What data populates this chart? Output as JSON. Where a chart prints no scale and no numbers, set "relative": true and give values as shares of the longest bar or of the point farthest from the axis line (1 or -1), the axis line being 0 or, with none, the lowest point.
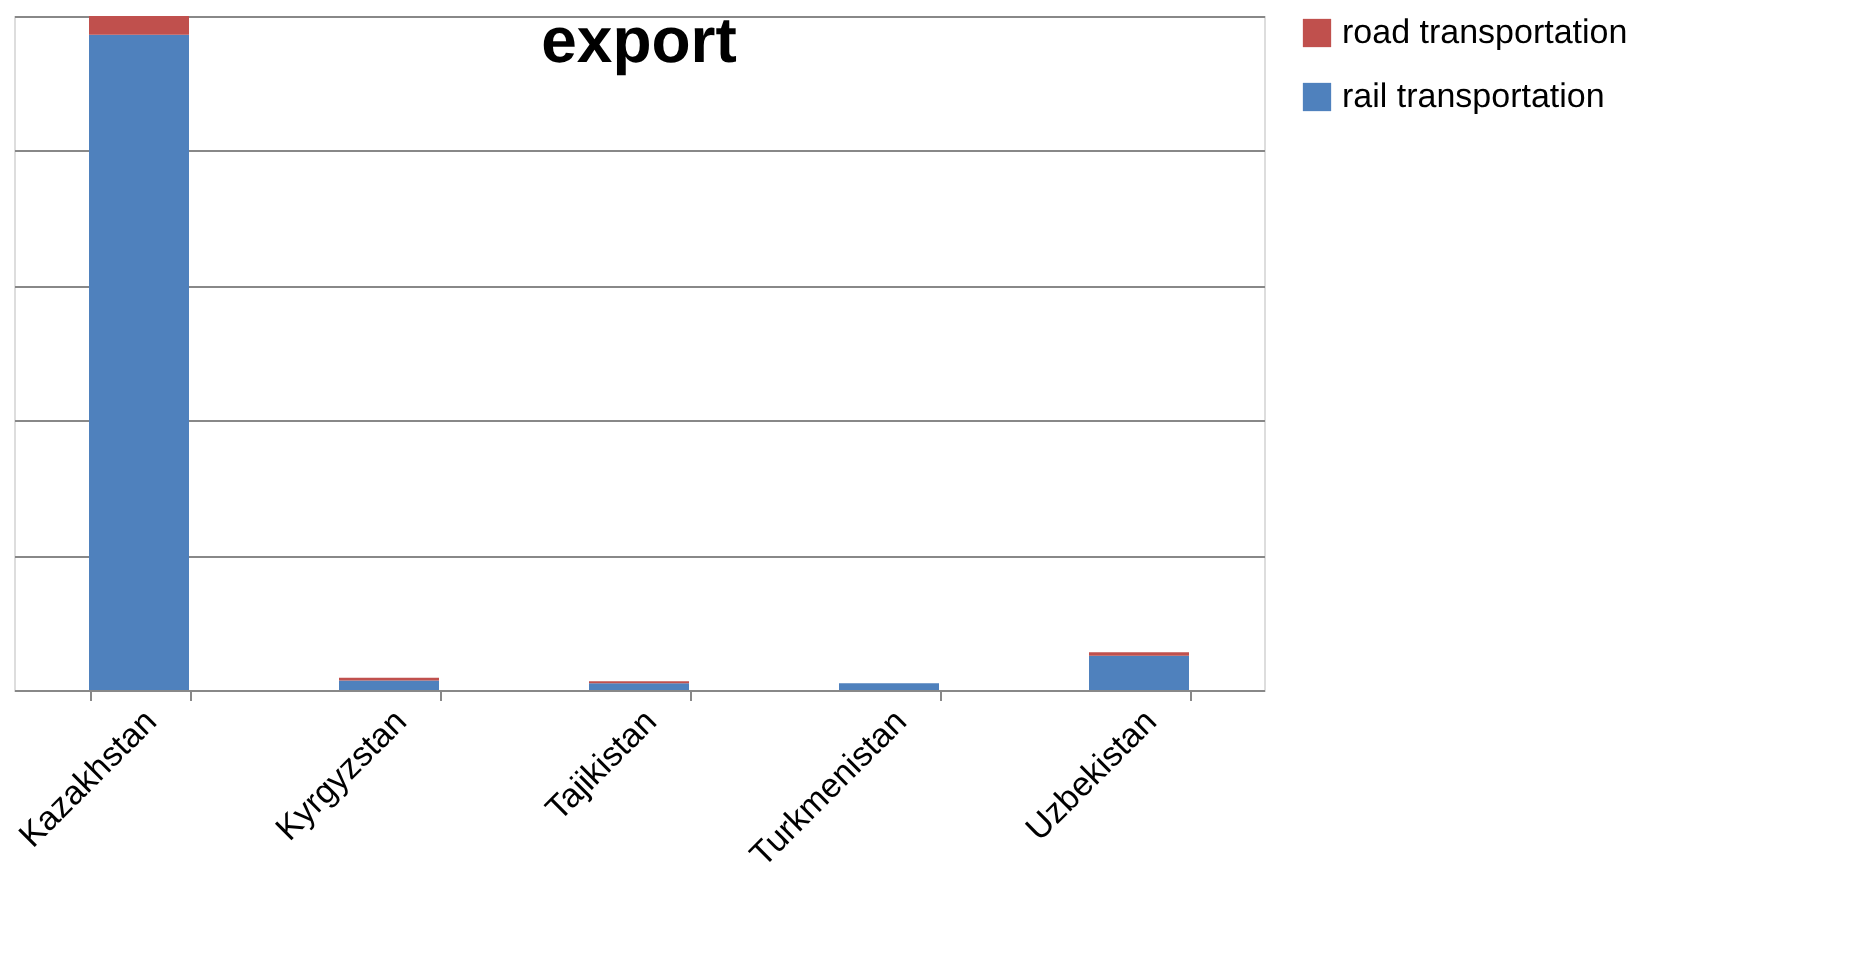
{
  "chart_data": {
    "type": "bar",
    "title": "export",
    "stacked": true,
    "relative": true,
    "grid": "y",
    "legend": "right",
    "categories": [
      "Kazakhstan",
      "Kyrgyzstan",
      "Tajikistan",
      "Turkmenistan",
      "Uzbekistan"
    ],
    "series": [
      {
        "name": "rail transportation",
        "color": "#4f81bd",
        "values": [
          0.972,
          0.014,
          0.01,
          0.01,
          0.051
        ]
      },
      {
        "name": "road transportation",
        "color": "#c0504d",
        "values": [
          0.028,
          0.004,
          0.003,
          0.0,
          0.005
        ]
      }
    ]
  }
}
